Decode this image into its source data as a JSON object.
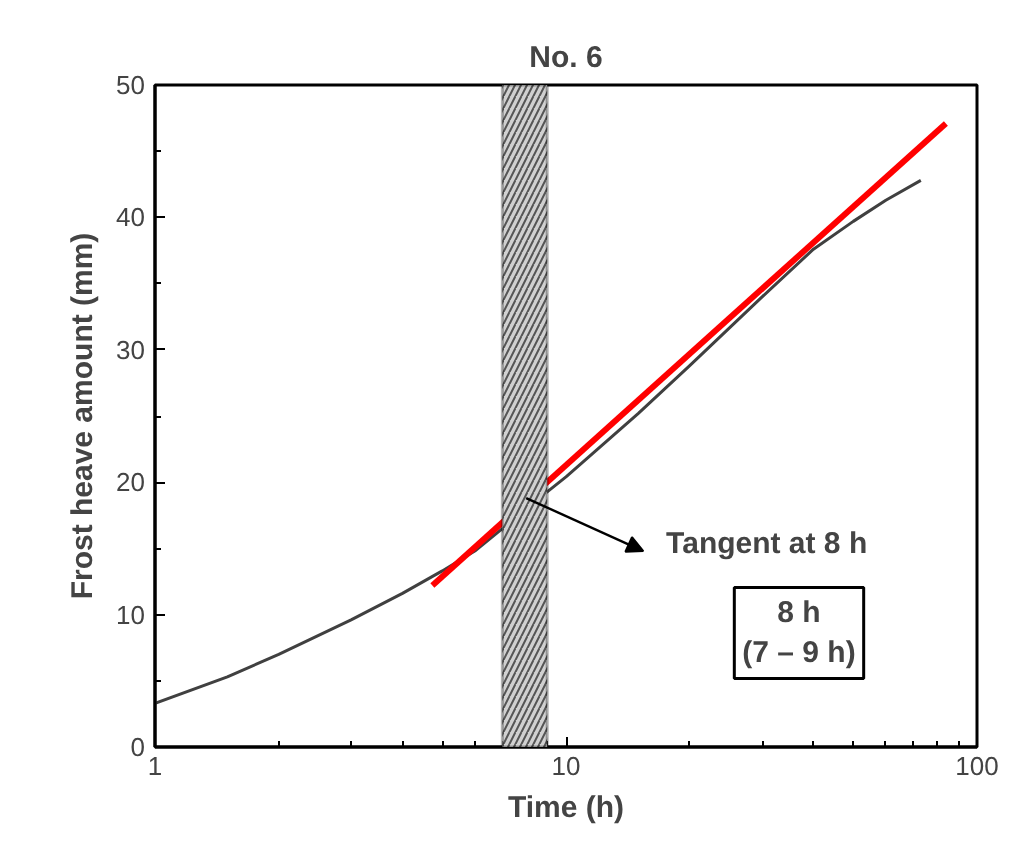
{
  "chart_data": {
    "type": "line",
    "title": "No. 6",
    "xlabel": "Time (h)",
    "ylabel": "Frost heave amount (mm)",
    "log": "x",
    "xlim": [
      1,
      100
    ],
    "xticks": [
      1,
      10,
      100
    ],
    "ylim": [
      0,
      50
    ],
    "yticks": [
      0,
      10,
      20,
      30,
      40,
      50
    ],
    "grid": false,
    "marker": "none",
    "line_style": "solid",
    "series": [
      {
        "color": "#404040",
        "x": [
          1,
          1.5,
          2,
          3,
          4,
          5,
          6,
          7,
          8,
          10,
          15,
          20,
          30,
          40,
          50,
          60,
          73
        ],
        "values": [
          3.3,
          5.3,
          7.0,
          9.6,
          11.6,
          13.3,
          14.8,
          16.5,
          18.0,
          20.4,
          25.2,
          28.8,
          34.0,
          37.6,
          39.7,
          41.3,
          42.8
        ]
      },
      {
        "color": "#ff0000",
        "x": [
          4.73,
          84
        ],
        "values": [
          12.2,
          47.1
        ]
      }
    ],
    "bands": [
      {
        "axis": "x",
        "from": 7,
        "to": 9,
        "color": "#d0d0d0"
      }
    ],
    "annotations": [
      {
        "text": "Tangent at 8 h",
        "x": 8,
        "y": 18.8
      },
      "8 h\n(7 – 9 h)"
    ]
  }
}
